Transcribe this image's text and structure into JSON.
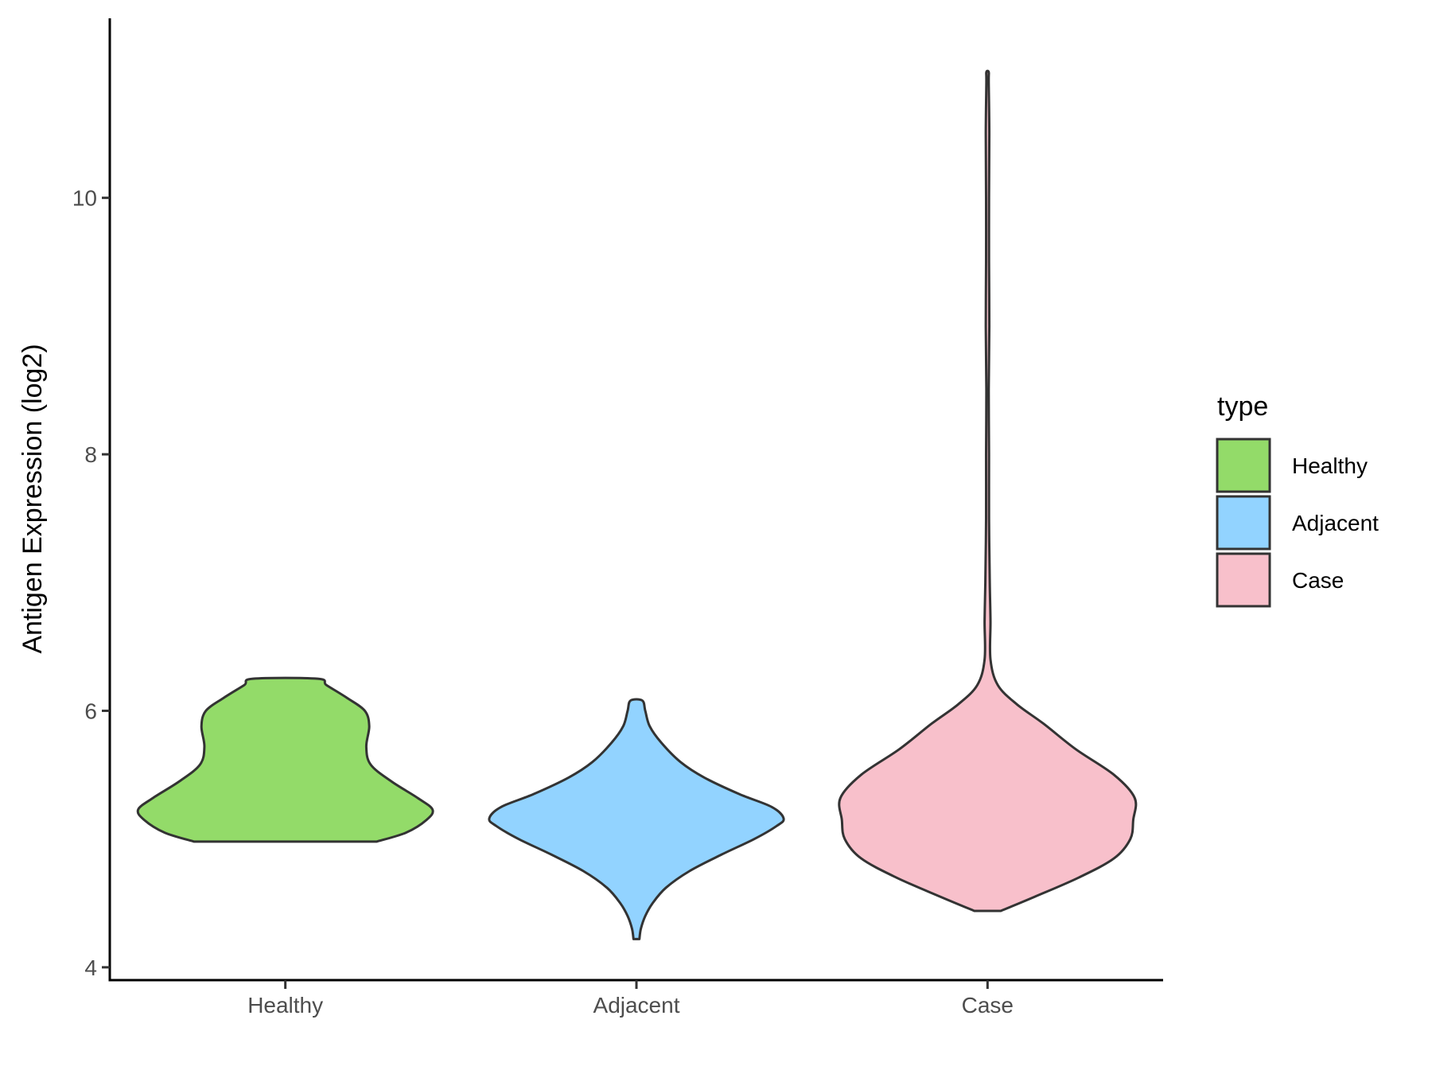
{
  "chart_data": {
    "type": "violin",
    "title": "",
    "xlabel": "",
    "ylabel": "Antigen Expression (log2)",
    "ylim": [
      3.9,
      11.4
    ],
    "yticks": [
      4,
      6,
      8,
      10
    ],
    "grid": false,
    "legend": {
      "title": "type",
      "position": "right",
      "items": [
        {
          "label": "Healthy",
          "color": "#93DB69"
        },
        {
          "label": "Adjacent",
          "color": "#92D3FF"
        },
        {
          "label": "Case",
          "color": "#F8C0CB"
        }
      ]
    },
    "categories": [
      "Healthy",
      "Adjacent",
      "Case"
    ],
    "series": [
      {
        "name": "Healthy",
        "color": "#93DB69",
        "profile": [
          [
            4.98,
            0.62
          ],
          [
            5.05,
            0.82
          ],
          [
            5.15,
            0.96
          ],
          [
            5.23,
            1.0
          ],
          [
            5.32,
            0.9
          ],
          [
            5.45,
            0.72
          ],
          [
            5.58,
            0.58
          ],
          [
            5.72,
            0.55
          ],
          [
            5.88,
            0.57
          ],
          [
            6.0,
            0.54
          ],
          [
            6.1,
            0.42
          ],
          [
            6.2,
            0.28
          ],
          [
            6.25,
            0.22
          ]
        ]
      },
      {
        "name": "Adjacent",
        "color": "#92D3FF",
        "profile": [
          [
            4.22,
            0.02
          ],
          [
            4.3,
            0.03
          ],
          [
            4.4,
            0.06
          ],
          [
            4.5,
            0.11
          ],
          [
            4.62,
            0.2
          ],
          [
            4.75,
            0.36
          ],
          [
            4.88,
            0.58
          ],
          [
            5.0,
            0.8
          ],
          [
            5.1,
            0.95
          ],
          [
            5.16,
            1.0
          ],
          [
            5.25,
            0.92
          ],
          [
            5.35,
            0.7
          ],
          [
            5.48,
            0.46
          ],
          [
            5.6,
            0.3
          ],
          [
            5.75,
            0.17
          ],
          [
            5.88,
            0.09
          ],
          [
            6.0,
            0.06
          ],
          [
            6.08,
            0.04
          ]
        ]
      },
      {
        "name": "Case",
        "color": "#F8C0CB",
        "profile": [
          [
            4.44,
            0.09
          ],
          [
            4.55,
            0.32
          ],
          [
            4.7,
            0.62
          ],
          [
            4.85,
            0.86
          ],
          [
            5.0,
            0.97
          ],
          [
            5.15,
            0.99
          ],
          [
            5.32,
            1.0
          ],
          [
            5.5,
            0.86
          ],
          [
            5.7,
            0.6
          ],
          [
            5.9,
            0.38
          ],
          [
            6.05,
            0.2
          ],
          [
            6.2,
            0.07
          ],
          [
            6.4,
            0.02
          ],
          [
            6.7,
            0.02
          ],
          [
            7.0,
            0.015
          ],
          [
            7.5,
            0.01
          ],
          [
            8.0,
            0.01
          ],
          [
            8.5,
            0.008
          ],
          [
            9.0,
            0.012
          ],
          [
            9.5,
            0.01
          ],
          [
            10.0,
            0.01
          ],
          [
            10.5,
            0.012
          ],
          [
            10.9,
            0.008
          ],
          [
            10.98,
            0.008
          ]
        ]
      }
    ]
  }
}
